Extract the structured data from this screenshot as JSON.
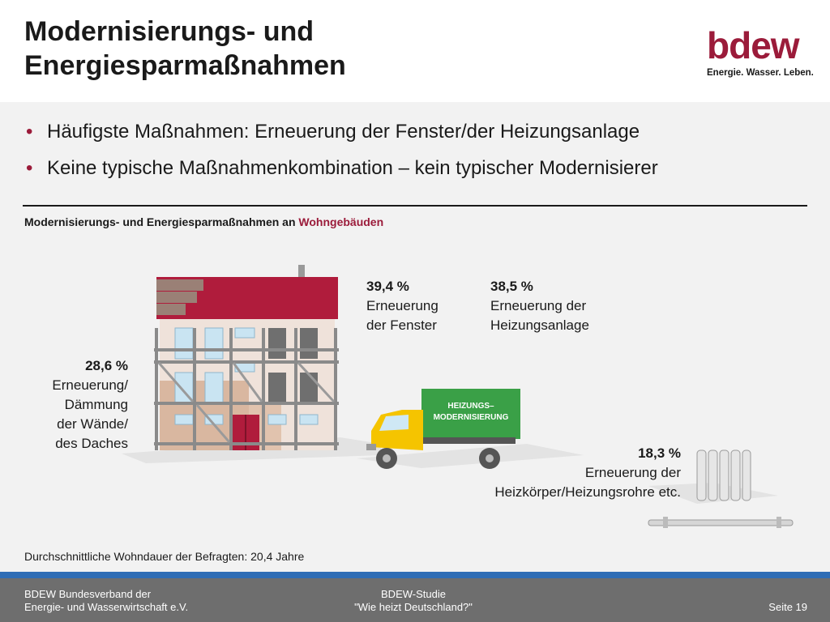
{
  "header": {
    "title": "Modernisierungs- und Energiesparmaßnahmen",
    "logo": {
      "word": "bdew",
      "tagline": "Energie. Wasser. Leben."
    }
  },
  "bullets": [
    "Häufigste Maßnahmen: Erneuerung der Fenster/der Heizungsanlage",
    "Keine typische Maßnahmenkombination – kein typischer Modernisierer"
  ],
  "subtitle": {
    "prefix": "Modernisierungs- und Energiesparmaßnahmen an ",
    "highlight": "Wohngebäuden"
  },
  "stats": {
    "walls": {
      "pct": "28,6 %",
      "l1": "Erneuerung/",
      "l2": "Dämmung",
      "l3": "der Wände/",
      "l4": "des Daches"
    },
    "windows": {
      "pct": "39,4 %",
      "l1": "Erneuerung",
      "l2": "der Fenster"
    },
    "heating": {
      "pct": "38,5 %",
      "l1": "Erneuerung der",
      "l2": "Heizungsanlage"
    },
    "radiator": {
      "pct": "18,3 %",
      "l1": "Erneuerung der",
      "l2": "Heizkörper/Heizungsrohre etc."
    }
  },
  "truck": {
    "line1": "HEIZUNGS–",
    "line2": "MODERNISIERUNG"
  },
  "average": "Durchschnittliche Wohndauer der Befragten: 20,4 Jahre",
  "footer": {
    "left1": "BDEW Bundesverband der",
    "left2": "Energie- und Wasserwirtschaft e.V.",
    "mid1": "BDEW-Studie",
    "mid2": "\"Wie heizt Deutschland?\"",
    "page": "Seite 19"
  },
  "colors": {
    "accent": "#9b1b3a",
    "truck_box": "#3aa047",
    "truck_cab": "#f5c400",
    "footer": "#6e6e6e",
    "footer_band": "#2f6db5"
  },
  "icons": [
    "house-illustration",
    "truck-illustration",
    "radiator-illustration"
  ]
}
